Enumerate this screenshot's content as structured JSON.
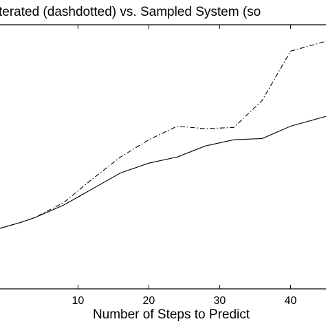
{
  "chart_data": {
    "type": "line",
    "title": "terated (dashdotted) vs. Sampled System (so",
    "xlabel": "Number of Steps to Predict",
    "ylabel": "",
    "xlim": [
      -1,
      45
    ],
    "ylim": [
      0,
      1
    ],
    "x_ticks": [
      10,
      20,
      30,
      40
    ],
    "x_tick_labels": [
      "10",
      "20",
      "30",
      "40"
    ],
    "grid": false,
    "series": [
      {
        "style": "solid",
        "color": "#000000",
        "x": [
          -1,
          2,
          4,
          8,
          12,
          16,
          20,
          24,
          28,
          32,
          36,
          40,
          45
        ],
        "y": [
          0.24,
          0.265,
          0.285,
          0.335,
          0.4,
          0.465,
          0.505,
          0.53,
          0.575,
          0.6,
          0.605,
          0.655,
          0.695
        ]
      },
      {
        "style": "dashdot",
        "color": "#000000",
        "x": [
          -1,
          2,
          4,
          8,
          12,
          16,
          20,
          24,
          28,
          32,
          36,
          40,
          45
        ],
        "y": [
          0.24,
          0.265,
          0.285,
          0.345,
          0.44,
          0.53,
          0.6,
          0.655,
          0.645,
          0.65,
          0.76,
          0.96,
          1.0
        ]
      }
    ]
  }
}
